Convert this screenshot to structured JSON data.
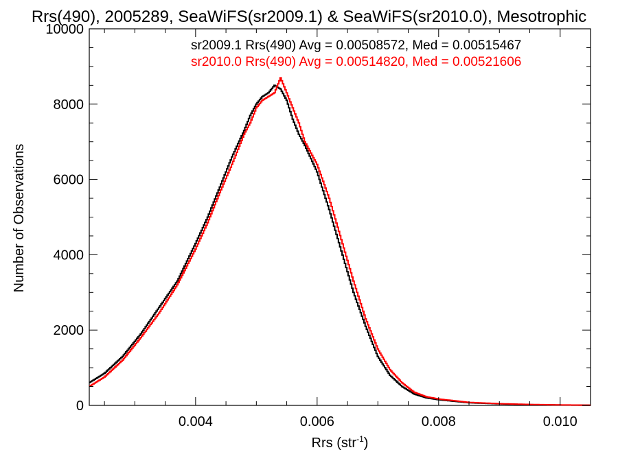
{
  "chart_data": {
    "type": "line",
    "title": "Rrs(490), 2005289, SeaWiFS(sr2009.1) & SeaWiFS(sr2010.0), Mesotrophic",
    "xlabel": "Rrs (str",
    "xlabel_sup": "-1",
    "xlabel_tail": ")",
    "ylabel": "Number of Observations",
    "xlim": [
      0.00225,
      0.0105
    ],
    "ylim": [
      0,
      10000
    ],
    "x_ticks": [
      0.004,
      0.006,
      0.008,
      0.01
    ],
    "x_tick_labels": [
      "0.004",
      "0.006",
      "0.008",
      "0.010"
    ],
    "y_ticks": [
      0,
      2000,
      4000,
      6000,
      8000,
      10000
    ],
    "y_tick_labels": [
      "0",
      "2000",
      "4000",
      "6000",
      "8000",
      "10000"
    ],
    "grid": false,
    "legend_placement": "top-right",
    "step": true,
    "series": [
      {
        "name": "sr2009.1",
        "color": "#000000",
        "annotation": "sr2009.1 Rrs(490) Avg = 0.00508572, Med = 0.00515467",
        "x": [
          0.00225,
          0.0025,
          0.0028,
          0.0031,
          0.0034,
          0.0037,
          0.004,
          0.0042,
          0.0044,
          0.0046,
          0.0048,
          0.0049,
          0.005,
          0.0051,
          0.0052,
          0.0053,
          0.0054,
          0.0055,
          0.0056,
          0.0057,
          0.0058,
          0.006,
          0.0062,
          0.0064,
          0.0066,
          0.0068,
          0.007,
          0.0072,
          0.0074,
          0.0076,
          0.0078,
          0.008,
          0.0085,
          0.009,
          0.0095,
          0.01,
          0.0105
        ],
        "y": [
          600,
          850,
          1300,
          1900,
          2600,
          3300,
          4300,
          5000,
          5800,
          6600,
          7300,
          7700,
          8000,
          8200,
          8300,
          8500,
          8400,
          8100,
          7600,
          7200,
          6900,
          6200,
          5200,
          4100,
          3000,
          2100,
          1300,
          800,
          500,
          300,
          200,
          150,
          70,
          40,
          20,
          10,
          5
        ]
      },
      {
        "name": "sr2010.0",
        "color": "#ff0000",
        "annotation": "sr2010.0 Rrs(490) Avg = 0.00514820, Med = 0.00521606",
        "x": [
          0.00225,
          0.0025,
          0.0028,
          0.0031,
          0.0034,
          0.0037,
          0.004,
          0.0042,
          0.0044,
          0.0046,
          0.0048,
          0.0049,
          0.005,
          0.0051,
          0.0052,
          0.0053,
          0.0054,
          0.0055,
          0.0056,
          0.0057,
          0.0058,
          0.006,
          0.0062,
          0.0064,
          0.0066,
          0.0068,
          0.007,
          0.0072,
          0.0074,
          0.0076,
          0.0078,
          0.008,
          0.0085,
          0.009,
          0.0095,
          0.01,
          0.0105
        ],
        "y": [
          500,
          750,
          1200,
          1800,
          2450,
          3200,
          4150,
          4850,
          5650,
          6400,
          7200,
          7500,
          7900,
          8100,
          8200,
          8300,
          8700,
          8300,
          7900,
          7500,
          7000,
          6400,
          5500,
          4400,
          3300,
          2300,
          1500,
          950,
          600,
          350,
          230,
          170,
          80,
          45,
          25,
          12,
          6
        ]
      }
    ]
  }
}
